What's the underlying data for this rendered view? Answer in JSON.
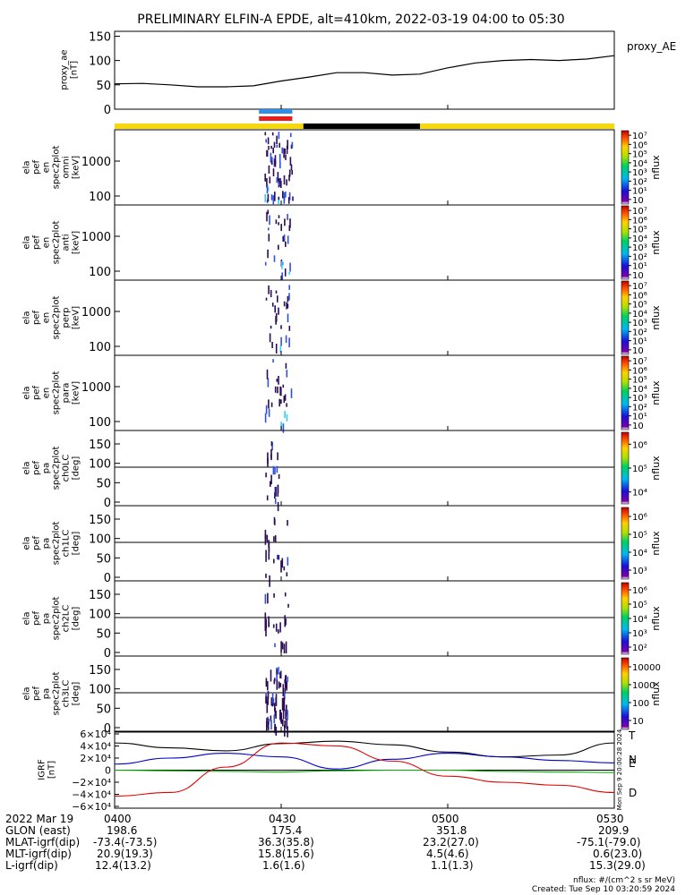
{
  "title": "PRELIMINARY ELFIN-A EPDE, alt=410km, 2022-03-19 04:00 to 05:30",
  "colors": {
    "axis": "#000000",
    "bar_yellow": "#f5d80f",
    "bar_black": "#000000",
    "science_blue": "#2f8fe8",
    "science_red": "#e61e1e",
    "spec_dark": "#2a0d55",
    "spec_blue": "#3050e0",
    "spec_cyan": "#30d0ff",
    "grf_total": "#000000",
    "grf_n": "#0000c8",
    "grf_e": "#00b000",
    "grf_d": "#e00000"
  },
  "time_axis": {
    "start": "04:00",
    "end": "05:30",
    "ticks": [
      "0400",
      "0430",
      "0500",
      "0530"
    ]
  },
  "bars": {
    "science_zones": [
      {
        "start": "04:26",
        "end": "04:32",
        "color_key": "science_blue"
      },
      {
        "start": "04:26",
        "end": "04:32",
        "color_key": "science_red"
      }
    ],
    "day_night": [
      {
        "start": "04:00",
        "end": "04:34",
        "color_key": "bar_yellow"
      },
      {
        "start": "04:34",
        "end": "04:55",
        "color_key": "bar_black"
      },
      {
        "start": "04:55",
        "end": "05:30",
        "color_key": "bar_yellow"
      }
    ]
  },
  "panels": {
    "proxy_ae": {
      "ylabel": [
        "proxy_ae",
        "[nT]"
      ],
      "legend": "proxy_AE",
      "ylim": [
        0,
        160
      ],
      "yticks": [
        "0",
        "50",
        "100",
        "150"
      ]
    },
    "spectra": [
      {
        "ylabel": [
          "ela",
          "pef",
          "en",
          "spec2plot",
          "omni",
          "[keV]"
        ],
        "yticks": [
          "100",
          "1000"
        ],
        "cbar_ticks": [
          "10",
          "10¹",
          "10²",
          "10³",
          "10⁴",
          "10⁵",
          "10⁶",
          "10⁷"
        ],
        "cbar_label": "nflux"
      },
      {
        "ylabel": [
          "ela",
          "pef",
          "en",
          "spec2plot",
          "anti",
          "[keV]"
        ],
        "yticks": [
          "100",
          "1000"
        ],
        "cbar_ticks": [
          "10",
          "10¹",
          "10²",
          "10³",
          "10⁴",
          "10⁵",
          "10⁶",
          "10⁷"
        ],
        "cbar_label": "nflux"
      },
      {
        "ylabel": [
          "ela",
          "pef",
          "en",
          "spec2plot",
          "perp",
          "[keV]"
        ],
        "yticks": [
          "100",
          "1000"
        ],
        "cbar_ticks": [
          "10",
          "10¹",
          "10²",
          "10³",
          "10⁴",
          "10⁵",
          "10⁶",
          "10⁷"
        ],
        "cbar_label": "nflux"
      },
      {
        "ylabel": [
          "ela",
          "pef",
          "en",
          "spec2plot",
          "para",
          "[keV]"
        ],
        "yticks": [
          "100",
          "1000"
        ],
        "cbar_ticks": [
          "10",
          "10¹",
          "10²",
          "10³",
          "10⁴",
          "10⁵",
          "10⁶",
          "10⁷"
        ],
        "cbar_label": "nflux"
      }
    ],
    "pitch_angle": [
      {
        "ylabel": [
          "ela",
          "pef",
          "pa",
          "spec2plot",
          "ch0LC",
          "[deg]"
        ],
        "yticks": [
          "0",
          "50",
          "100",
          "150"
        ],
        "cbar_ticks": [
          "10⁴",
          "10⁵",
          "10⁶"
        ],
        "cbar_label": "nflux"
      },
      {
        "ylabel": [
          "ela",
          "pef",
          "pa",
          "spec2plot",
          "ch1LC",
          "[deg]"
        ],
        "yticks": [
          "0",
          "50",
          "100",
          "150"
        ],
        "cbar_ticks": [
          "10³",
          "10⁴",
          "10⁵",
          "10⁶"
        ],
        "cbar_label": "nflux"
      },
      {
        "ylabel": [
          "ela",
          "pef",
          "pa",
          "spec2plot",
          "ch2LC",
          "[deg]"
        ],
        "yticks": [
          "0",
          "50",
          "100",
          "150"
        ],
        "cbar_ticks": [
          "10²",
          "10³",
          "10⁴",
          "10⁵",
          "10⁶"
        ],
        "cbar_label": "nflux"
      },
      {
        "ylabel": [
          "ela",
          "pef",
          "pa",
          "spec2plot",
          "ch3LC",
          "[deg]"
        ],
        "yticks": [
          "0",
          "50",
          "100",
          "150"
        ],
        "cbar_ticks": [
          "10",
          "100",
          "1000",
          "10000"
        ],
        "cbar_label": "nflux"
      }
    ],
    "igrf": {
      "ylabel": [
        "IGRF",
        "[nT]"
      ],
      "yticks": [
        "−6×10⁴",
        "−4×10⁴",
        "−2×10⁴",
        "0",
        "2×10⁴",
        "4×10⁴",
        "6×10⁴"
      ],
      "side_labels": [
        "T",
        "N",
        "E",
        "D"
      ],
      "stamp": "Mon Sep 9 20:00:28 2024"
    }
  },
  "chart_data": [
    {
      "type": "line",
      "title": "PRELIMINARY ELFIN-A EPDE, alt=410km, 2022-03-19 04:00 to 05:30",
      "xlabel": "",
      "ylabel": "proxy_ae [nT]",
      "ylim": [
        0,
        160
      ],
      "x": [
        "04:00",
        "04:05",
        "04:10",
        "04:15",
        "04:20",
        "04:25",
        "04:30",
        "04:35",
        "04:40",
        "04:45",
        "04:50",
        "04:55",
        "05:00",
        "05:05",
        "05:10",
        "05:15",
        "05:20",
        "05:25",
        "05:30"
      ],
      "series": [
        {
          "name": "proxy_AE",
          "values": [
            52,
            53,
            50,
            46,
            46,
            48,
            58,
            66,
            75,
            75,
            70,
            72,
            85,
            95,
            100,
            102,
            100,
            103,
            110
          ]
        }
      ]
    },
    {
      "type": "line",
      "ylabel": "IGRF [nT]",
      "ylim": [
        -60000,
        60000
      ],
      "x": [
        "04:00",
        "04:10",
        "04:20",
        "04:30",
        "04:40",
        "04:50",
        "05:00",
        "05:10",
        "05:20",
        "05:30"
      ],
      "series": [
        {
          "name": "T",
          "values": [
            45000,
            37000,
            32000,
            44000,
            48000,
            42000,
            30000,
            22000,
            25000,
            45000
          ]
        },
        {
          "name": "N",
          "values": [
            10000,
            20000,
            28000,
            22000,
            2000,
            18000,
            28000,
            22000,
            16000,
            12000
          ]
        },
        {
          "name": "E",
          "values": [
            0,
            -1000,
            -2000,
            -3000,
            -1000,
            0,
            0,
            -2000,
            -3000,
            -4000
          ]
        },
        {
          "name": "D",
          "values": [
            -43000,
            -37000,
            5000,
            45000,
            40000,
            15000,
            -10000,
            -20000,
            -25000,
            -37000
          ]
        }
      ]
    }
  ],
  "bottom_table": {
    "rows": [
      {
        "label": "2022 Mar 19",
        "values": [
          "0400",
          "0430",
          "0500",
          "0530"
        ]
      },
      {
        "label": "GLON (east)",
        "values": [
          "198.6",
          "175.4",
          "351.8",
          "209.9"
        ]
      },
      {
        "label": "MLAT-igrf(dip)",
        "values": [
          "-73.4(-73.5)",
          "36.3(35.8)",
          "23.2(27.0)",
          "-75.1(-79.0)"
        ]
      },
      {
        "label": "MLT-igrf(dip)",
        "values": [
          "20.9(19.3)",
          "15.8(15.6)",
          "4.5(4.6)",
          "0.6(23.0)"
        ]
      },
      {
        "label": "L-igrf(dip)",
        "values": [
          "12.4(13.2)",
          "1.6(1.6)",
          "1.1(1.3)",
          "15.3(29.0)"
        ]
      }
    ],
    "units_note": "nflux: #/(cm^2 s sr MeV)",
    "created_note": "Created: Tue Sep 10 03:20:59 2024"
  }
}
